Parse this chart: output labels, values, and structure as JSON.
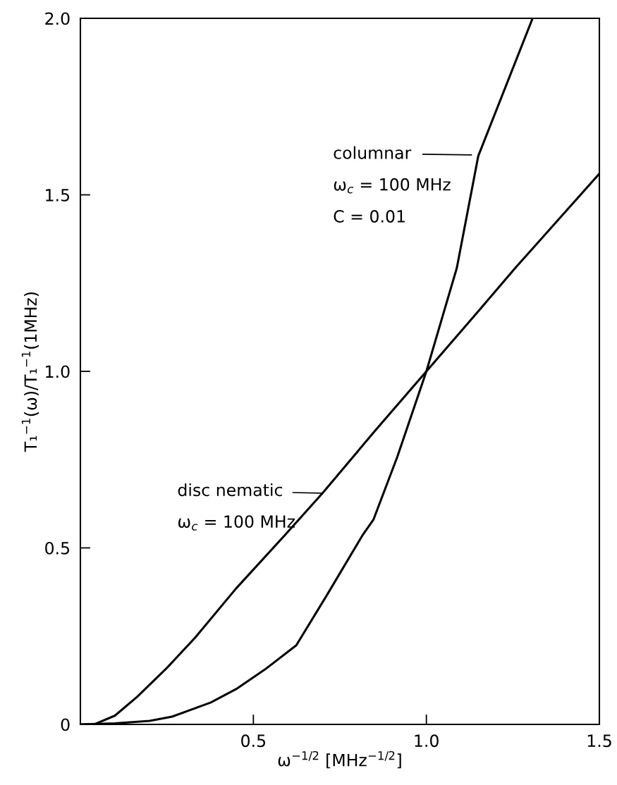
{
  "chart_data": {
    "type": "line",
    "xlabel": "ω$^{−1/2}$ [MHz$^{−1/2}$]",
    "ylabel": "T₁$^{−1}$(ω)/T₁$^{−1}$(1MHz)",
    "xlim": [
      0,
      1.5
    ],
    "ylim": [
      0,
      2.0
    ],
    "xticks": [
      0.5,
      {
        "value": 1.0,
        "label": "1.0"
      },
      1.5
    ],
    "yticks": [
      {
        "value": 0,
        "label": "0"
      },
      0.5,
      {
        "value": 1.0,
        "label": "1.0"
      },
      1.5,
      {
        "value": 2.0,
        "label": "2.0"
      }
    ],
    "grid": false,
    "marker": "none",
    "line_style": "solid",
    "series": [
      {
        "color": "#000000",
        "x": [
          0.0,
          0.04,
          0.1,
          0.164,
          0.25,
          0.331,
          0.45,
          0.59,
          0.7,
          0.85,
          1.0,
          1.15,
          1.257,
          1.4,
          1.5
        ],
        "values": [
          0.0,
          0.0,
          0.025,
          0.078,
          0.16,
          0.245,
          0.385,
          0.535,
          0.655,
          0.83,
          1.0,
          1.17,
          1.293,
          1.45,
          1.56
        ]
      },
      {
        "color": "#000000",
        "x": [
          0.0,
          0.1,
          0.2,
          0.265,
          0.377,
          0.45,
          0.534,
          0.624,
          0.713,
          0.815,
          0.847,
          0.916,
          1.0,
          1.088,
          1.15,
          1.307
        ],
        "values": [
          0.0,
          0.003,
          0.01,
          0.022,
          0.062,
          0.1,
          0.156,
          0.224,
          0.367,
          0.535,
          0.58,
          0.758,
          1.0,
          1.293,
          1.61,
          2.0
        ]
      }
    ],
    "annotations": [
      "columnar",
      "ω$_{c}$ = 100 MHz",
      "C = 0.01",
      {
        "text": "disc nematic",
        "x": 0.7,
        "y": 0.655
      },
      "ω$_{c}$ = 100 MHz"
    ]
  }
}
